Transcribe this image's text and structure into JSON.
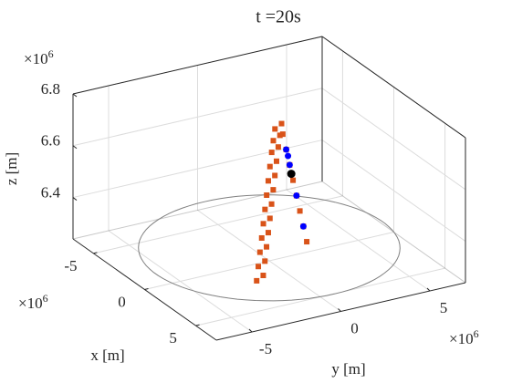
{
  "chart_data": {
    "type": "scatter3d",
    "title": "t =20s",
    "xlabel": "x [m]",
    "ylabel": "y [m]",
    "zlabel": "z [m]",
    "xlim": [
      -7000000,
      7000000
    ],
    "ylim": [
      -7000000,
      7000000
    ],
    "zlim": [
      6240000,
      6800000
    ],
    "xticks": [
      {
        "value": -5000000,
        "label": "-5"
      },
      0,
      {
        "value": 5000000,
        "label": "5"
      }
    ],
    "yticks": [
      {
        "value": -5000000,
        "label": "-5"
      },
      0,
      {
        "value": 5000000,
        "label": "5"
      }
    ],
    "zticks": [
      {
        "value": 6400000,
        "label": "6.4"
      },
      {
        "value": 6600000,
        "label": "6.6"
      },
      {
        "value": 6800000,
        "label": "6.8"
      }
    ],
    "x_exponent": {
      "base": "×10",
      "power": "6"
    },
    "y_exponent": {
      "base": "×10",
      "power": "6"
    },
    "z_exponent": {
      "base": "×10",
      "power": "6"
    },
    "grid": true,
    "earth": {
      "radius": 6371000,
      "z": 6290000,
      "color": "#808080"
    },
    "series": [
      {
        "color": "#d95319",
        "marker": "square",
        "x": [
          1780000,
          1680000,
          1580000,
          1490000,
          1390000,
          1290000,
          1190000,
          1090000,
          990000,
          900000,
          800000,
          700000,
          1380000,
          1280000,
          1180000,
          1090000,
          990000,
          890000,
          790000,
          690000,
          590000,
          500000,
          400000,
          300000,
          890000,
          1220000,
          1560000,
          1890000,
          2230000,
          2560000,
          2900000,
          3230000
        ],
        "y": [
          -1730000,
          -1580000,
          -1430000,
          -1280000,
          -1130000,
          -980000,
          -830000,
          -680000,
          -530000,
          -380000,
          -230000,
          -80000,
          -1130000,
          -980000,
          -830000,
          -680000,
          -530000,
          -380000,
          -230000,
          -80000,
          70000,
          220000,
          370000,
          520000,
          250000,
          250000,
          250000,
          250000,
          250000,
          250000,
          250000,
          250000
        ],
        "z": [
          6240000,
          6290000,
          6340000,
          6390000,
          6440000,
          6490000,
          6540000,
          6590000,
          6640000,
          6690000,
          6730000,
          6770000,
          6240000,
          6290000,
          6340000,
          6390000,
          6440000,
          6490000,
          6540000,
          6590000,
          6640000,
          6690000,
          6730000,
          6770000,
          6750000,
          6700000,
          6650000,
          6600000,
          6550000,
          6500000,
          6450000,
          6400000
        ]
      },
      {
        "color": "#0000ff",
        "marker": "circle",
        "x": [
          1220000,
          1400000,
          1560000,
          2230000,
          2900000
        ],
        "y": [
          250000,
          250000,
          250000,
          250000,
          250000
        ],
        "z": [
          6700000,
          6680000,
          6650000,
          6550000,
          6450000
        ]
      },
      {
        "color": "#000000",
        "marker": "circle",
        "x": [
          1720000
        ],
        "y": [
          250000
        ],
        "z": [
          6620000
        ]
      }
    ]
  }
}
